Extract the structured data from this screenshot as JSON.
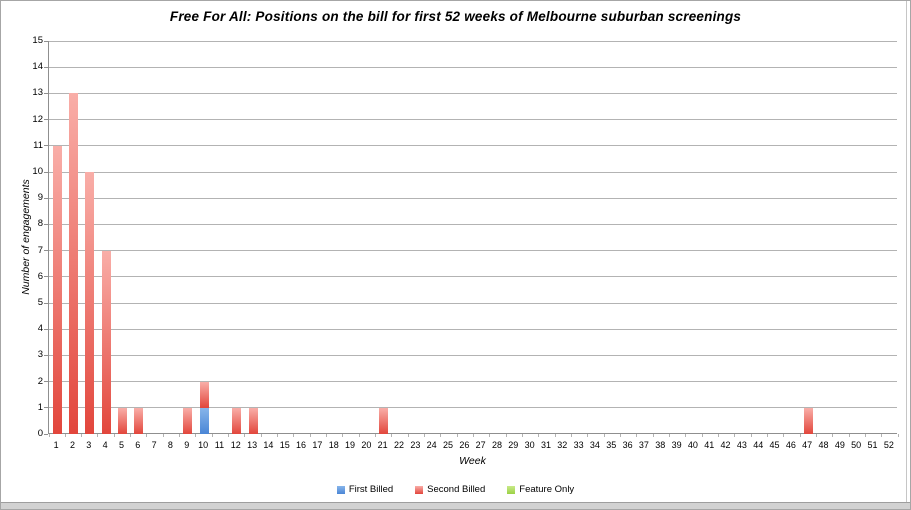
{
  "chart_data": {
    "type": "bar",
    "stacked": true,
    "title": "Free For All: Positions on the bill for first 52 weeks of Melbourne suburban screenings",
    "xlabel": "Week",
    "ylabel": "Number of engagements",
    "ylim": [
      0,
      15
    ],
    "y_tick_step": 1,
    "grid": "horizontal",
    "legend_position": "bottom",
    "categories": [
      1,
      2,
      3,
      4,
      5,
      6,
      7,
      8,
      9,
      10,
      11,
      12,
      13,
      14,
      15,
      16,
      17,
      18,
      19,
      20,
      21,
      22,
      23,
      24,
      25,
      26,
      27,
      28,
      29,
      30,
      31,
      32,
      33,
      34,
      35,
      36,
      37,
      38,
      39,
      40,
      41,
      42,
      43,
      44,
      45,
      46,
      47,
      48,
      49,
      50,
      51,
      52
    ],
    "series": [
      {
        "name": "First Billed",
        "color_top": "#87b5ea",
        "color_bottom": "#4a86d6",
        "values": [
          0,
          0,
          0,
          0,
          0,
          0,
          0,
          0,
          0,
          1,
          0,
          0,
          0,
          0,
          0,
          0,
          0,
          0,
          0,
          0,
          0,
          0,
          0,
          0,
          0,
          0,
          0,
          0,
          0,
          0,
          0,
          0,
          0,
          0,
          0,
          0,
          0,
          0,
          0,
          0,
          0,
          0,
          0,
          0,
          0,
          0,
          0,
          0,
          0,
          0,
          0,
          0
        ]
      },
      {
        "name": "Second Billed",
        "color_top": "#f9aea8",
        "color_bottom": "#e2463c",
        "values": [
          11,
          13,
          10,
          7,
          1,
          1,
          0,
          0,
          1,
          1,
          0,
          1,
          1,
          0,
          0,
          0,
          0,
          0,
          0,
          0,
          1,
          0,
          0,
          0,
          0,
          0,
          0,
          0,
          0,
          0,
          0,
          0,
          0,
          0,
          0,
          0,
          0,
          0,
          0,
          0,
          0,
          0,
          0,
          0,
          0,
          0,
          1,
          0,
          0,
          0,
          0,
          0
        ]
      },
      {
        "name": "Feature Only",
        "color_top": "#c9e989",
        "color_bottom": "#9bd145",
        "values": [
          0,
          0,
          0,
          0,
          0,
          0,
          0,
          0,
          0,
          0,
          0,
          0,
          0,
          0,
          0,
          0,
          0,
          0,
          0,
          0,
          0,
          0,
          0,
          0,
          0,
          0,
          0,
          0,
          0,
          0,
          0,
          0,
          0,
          0,
          0,
          0,
          0,
          0,
          0,
          0,
          0,
          0,
          0,
          0,
          0,
          0,
          0,
          0,
          0,
          0,
          0,
          0
        ]
      }
    ],
    "colors": {
      "gridline": "#b3b3b3",
      "axis": "#8f8f8f",
      "text": "#000000"
    }
  }
}
